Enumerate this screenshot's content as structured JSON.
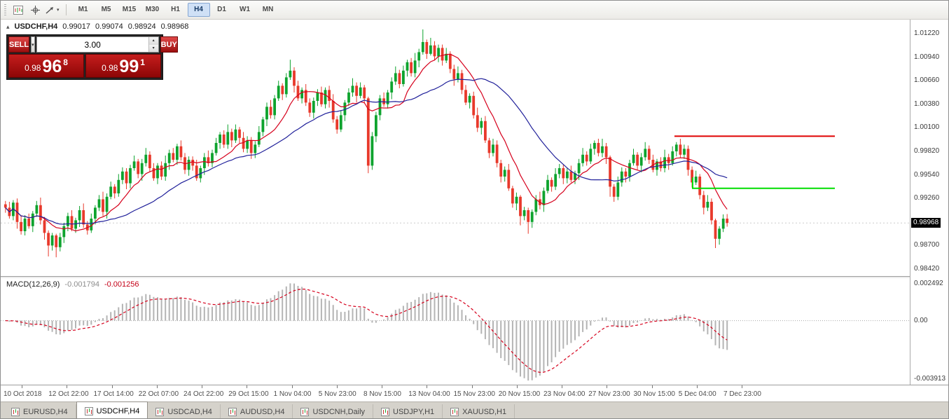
{
  "toolbar": {
    "timeframes": [
      "M1",
      "M5",
      "M15",
      "M30",
      "H1",
      "H4",
      "D1",
      "W1",
      "MN"
    ],
    "active_timeframe": "H4"
  },
  "symbol_header": {
    "symbol": "USDCHF,H4",
    "open": "0.99017",
    "high": "0.99074",
    "low": "0.98924",
    "close": "0.98968"
  },
  "trade_panel": {
    "sell_label": "SELL",
    "buy_label": "BUY",
    "lot_size": "3.00",
    "sell_price": {
      "prefix": "0.98",
      "big": "96",
      "sup": "8"
    },
    "buy_price": {
      "prefix": "0.98",
      "big": "99",
      "sup": "1"
    }
  },
  "price_axis": {
    "ticks": [
      "1.01220",
      "1.00940",
      "1.00660",
      "1.00380",
      "1.00100",
      "0.99820",
      "0.99540",
      "0.99260",
      "0.98980",
      "0.98700",
      "0.98420"
    ],
    "current": "0.98968"
  },
  "time_axis": {
    "labels": [
      "10 Oct 2018",
      "12 Oct 22:00",
      "17 Oct 14:00",
      "22 Oct 07:00",
      "24 Oct 22:00",
      "29 Oct 15:00",
      "1 Nov 04:00",
      "5 Nov 23:00",
      "8 Nov 15:00",
      "13 Nov 04:00",
      "15 Nov 23:00",
      "20 Nov 15:00",
      "23 Nov 04:00",
      "27 Nov 23:00",
      "30 Nov 15:00",
      "5 Dec 04:00",
      "7 Dec 23:00"
    ]
  },
  "macd": {
    "label": "MACD(12,26,9)",
    "value_main": "-0.001794",
    "value_signal": "-0.001256",
    "ticks": [
      "0.002492",
      "0.00",
      "-0.003913"
    ]
  },
  "tabs": [
    {
      "label": "EURUSD,H4",
      "active": false
    },
    {
      "label": "USDCHF,H4",
      "active": true
    },
    {
      "label": "USDCAD,H4",
      "active": false
    },
    {
      "label": "AUDUSD,H4",
      "active": false
    },
    {
      "label": "USDCNH,Daily",
      "active": false
    },
    {
      "label": "USDJPY,H1",
      "active": false
    },
    {
      "label": "XAUUSD,H1",
      "active": false
    }
  ],
  "chart_data": {
    "type": "candlestick",
    "symbol": "USDCHF",
    "timeframe": "H4",
    "title": "USDCHF,H4",
    "price_range": [
      0.983367,
      1.013867
    ],
    "plot_right": 1040,
    "current_price": 0.98968,
    "ma_fast": 10,
    "ma_slow": 28,
    "macd_range": [
      -0.0043,
      0.00285
    ],
    "levels": [
      {
        "price": 1.0,
        "color": "#e00000",
        "x1": 0.74,
        "x2": 0.916
      },
      {
        "price": 0.9938,
        "color": "#00dd00",
        "x1": 0.76,
        "x2": 0.916,
        "tick_from": 0.9951
      }
    ],
    "colors": {
      "up": "#0ea32e",
      "down": "#e8392b",
      "ma_fast": "#d6001c",
      "ma_slow": "#20209a",
      "hist": "#b4b4b4",
      "signal": "#d6001c"
    },
    "closes": [
      0.9915,
      0.9905,
      0.9921,
      0.9898,
      0.9887,
      0.9902,
      0.9893,
      0.9908,
      0.9918,
      0.99,
      0.9885,
      0.987,
      0.9882,
      0.9868,
      0.988,
      0.9893,
      0.9905,
      0.989,
      0.99,
      0.9912,
      0.9895,
      0.9888,
      0.9902,
      0.9915,
      0.9925,
      0.991,
      0.9928,
      0.994,
      0.9932,
      0.9948,
      0.9958,
      0.9944,
      0.9962,
      0.997,
      0.9955,
      0.9968,
      0.9978,
      0.9962,
      0.995,
      0.9965,
      0.9952,
      0.9968,
      0.998,
      0.9972,
      0.9988,
      0.9975,
      0.996,
      0.9972,
      0.9965,
      0.995,
      0.9962,
      0.9975,
      0.9968,
      0.998,
      0.9992,
      1.0002,
      0.999,
      1.0005,
      0.9995,
      1.0008,
      0.9998,
      0.9985,
      0.9995,
      0.998,
      0.999,
      1.0005,
      1.002,
      1.0035,
      1.0025,
      1.0045,
      1.006,
      1.005,
      1.007,
      1.0078,
      1.006,
      1.0045,
      1.0055,
      1.004,
      1.0028,
      1.0042,
      1.0052,
      1.0038,
      1.0055,
      1.0042,
      1.002,
      1.0008,
      1.0025,
      1.004,
      1.0052,
      1.006,
      1.0048,
      1.0058,
      1.0045,
      0.9965,
      1.0,
      1.0025,
      1.0045,
      1.0038,
      1.0052,
      1.0065,
      1.0075,
      1.0062,
      1.0078,
      1.0088,
      1.0075,
      1.009,
      1.01,
      1.0112,
      1.0098,
      1.0108,
      1.0095,
      1.0105,
      1.009,
      1.0098,
      1.008,
      1.0068,
      1.0075,
      1.0055,
      1.004,
      1.0048,
      1.0025,
      1.001,
      1.0018,
      0.9995,
      0.998,
      0.999,
      0.9968,
      0.9952,
      0.996,
      0.9938,
      0.992,
      0.9928,
      0.9905,
      0.9912,
      0.9898,
      0.991,
      0.9925,
      0.9918,
      0.9935,
      0.9948,
      0.994,
      0.9955,
      0.9962,
      0.995,
      0.9958,
      0.9948,
      0.9956,
      0.9968,
      0.9978,
      0.997,
      0.9985,
      0.9992,
      0.998,
      0.9988,
      0.9975,
      0.994,
      0.9928,
      0.9945,
      0.9958,
      0.9952,
      0.9968,
      0.9978,
      0.9965,
      0.9975,
      0.9985,
      0.9972,
      0.996,
      0.997,
      0.9962,
      0.9975,
      0.9968,
      0.9982,
      0.999,
      0.9978,
      0.9985,
      0.996,
      0.9945,
      0.9952,
      0.993,
      0.9915,
      0.9922,
      0.99,
      0.9878,
      0.989,
      0.9902,
      0.98968
    ],
    "wick_up": [
      0.0004,
      0.0007,
      0.0003,
      0.0005,
      0.0008,
      0.0004,
      0.0006,
      0.0003,
      0.0005,
      0.0009,
      0.0004,
      0.0006,
      0.0003,
      0.0007,
      0.0005,
      0.0004
    ],
    "wick_dn": [
      0.0006,
      0.0003,
      0.0005,
      0.0008,
      0.0004,
      0.0005,
      0.0003,
      0.0007,
      0.0004,
      0.0005,
      0.0008,
      0.0003,
      0.0006,
      0.0004,
      0.0005,
      0.0007
    ],
    "wick_overrides": {
      "11": [
        0.0003,
        0.0013
      ],
      "13": [
        0.0002,
        0.0012
      ],
      "73": [
        0.0013,
        0.0003
      ],
      "93": [
        0.0002,
        0.0009
      ],
      "107": [
        0.0015,
        0.0003
      ],
      "109": [
        0.0009,
        0.0002
      ],
      "132": [
        0.0002,
        0.0011
      ],
      "134": [
        0.0003,
        0.0014
      ],
      "155": [
        0.0002,
        0.0012
      ],
      "182": [
        0.0002,
        0.0011
      ],
      "185": [
        0.00054,
        0.00044
      ]
    }
  }
}
